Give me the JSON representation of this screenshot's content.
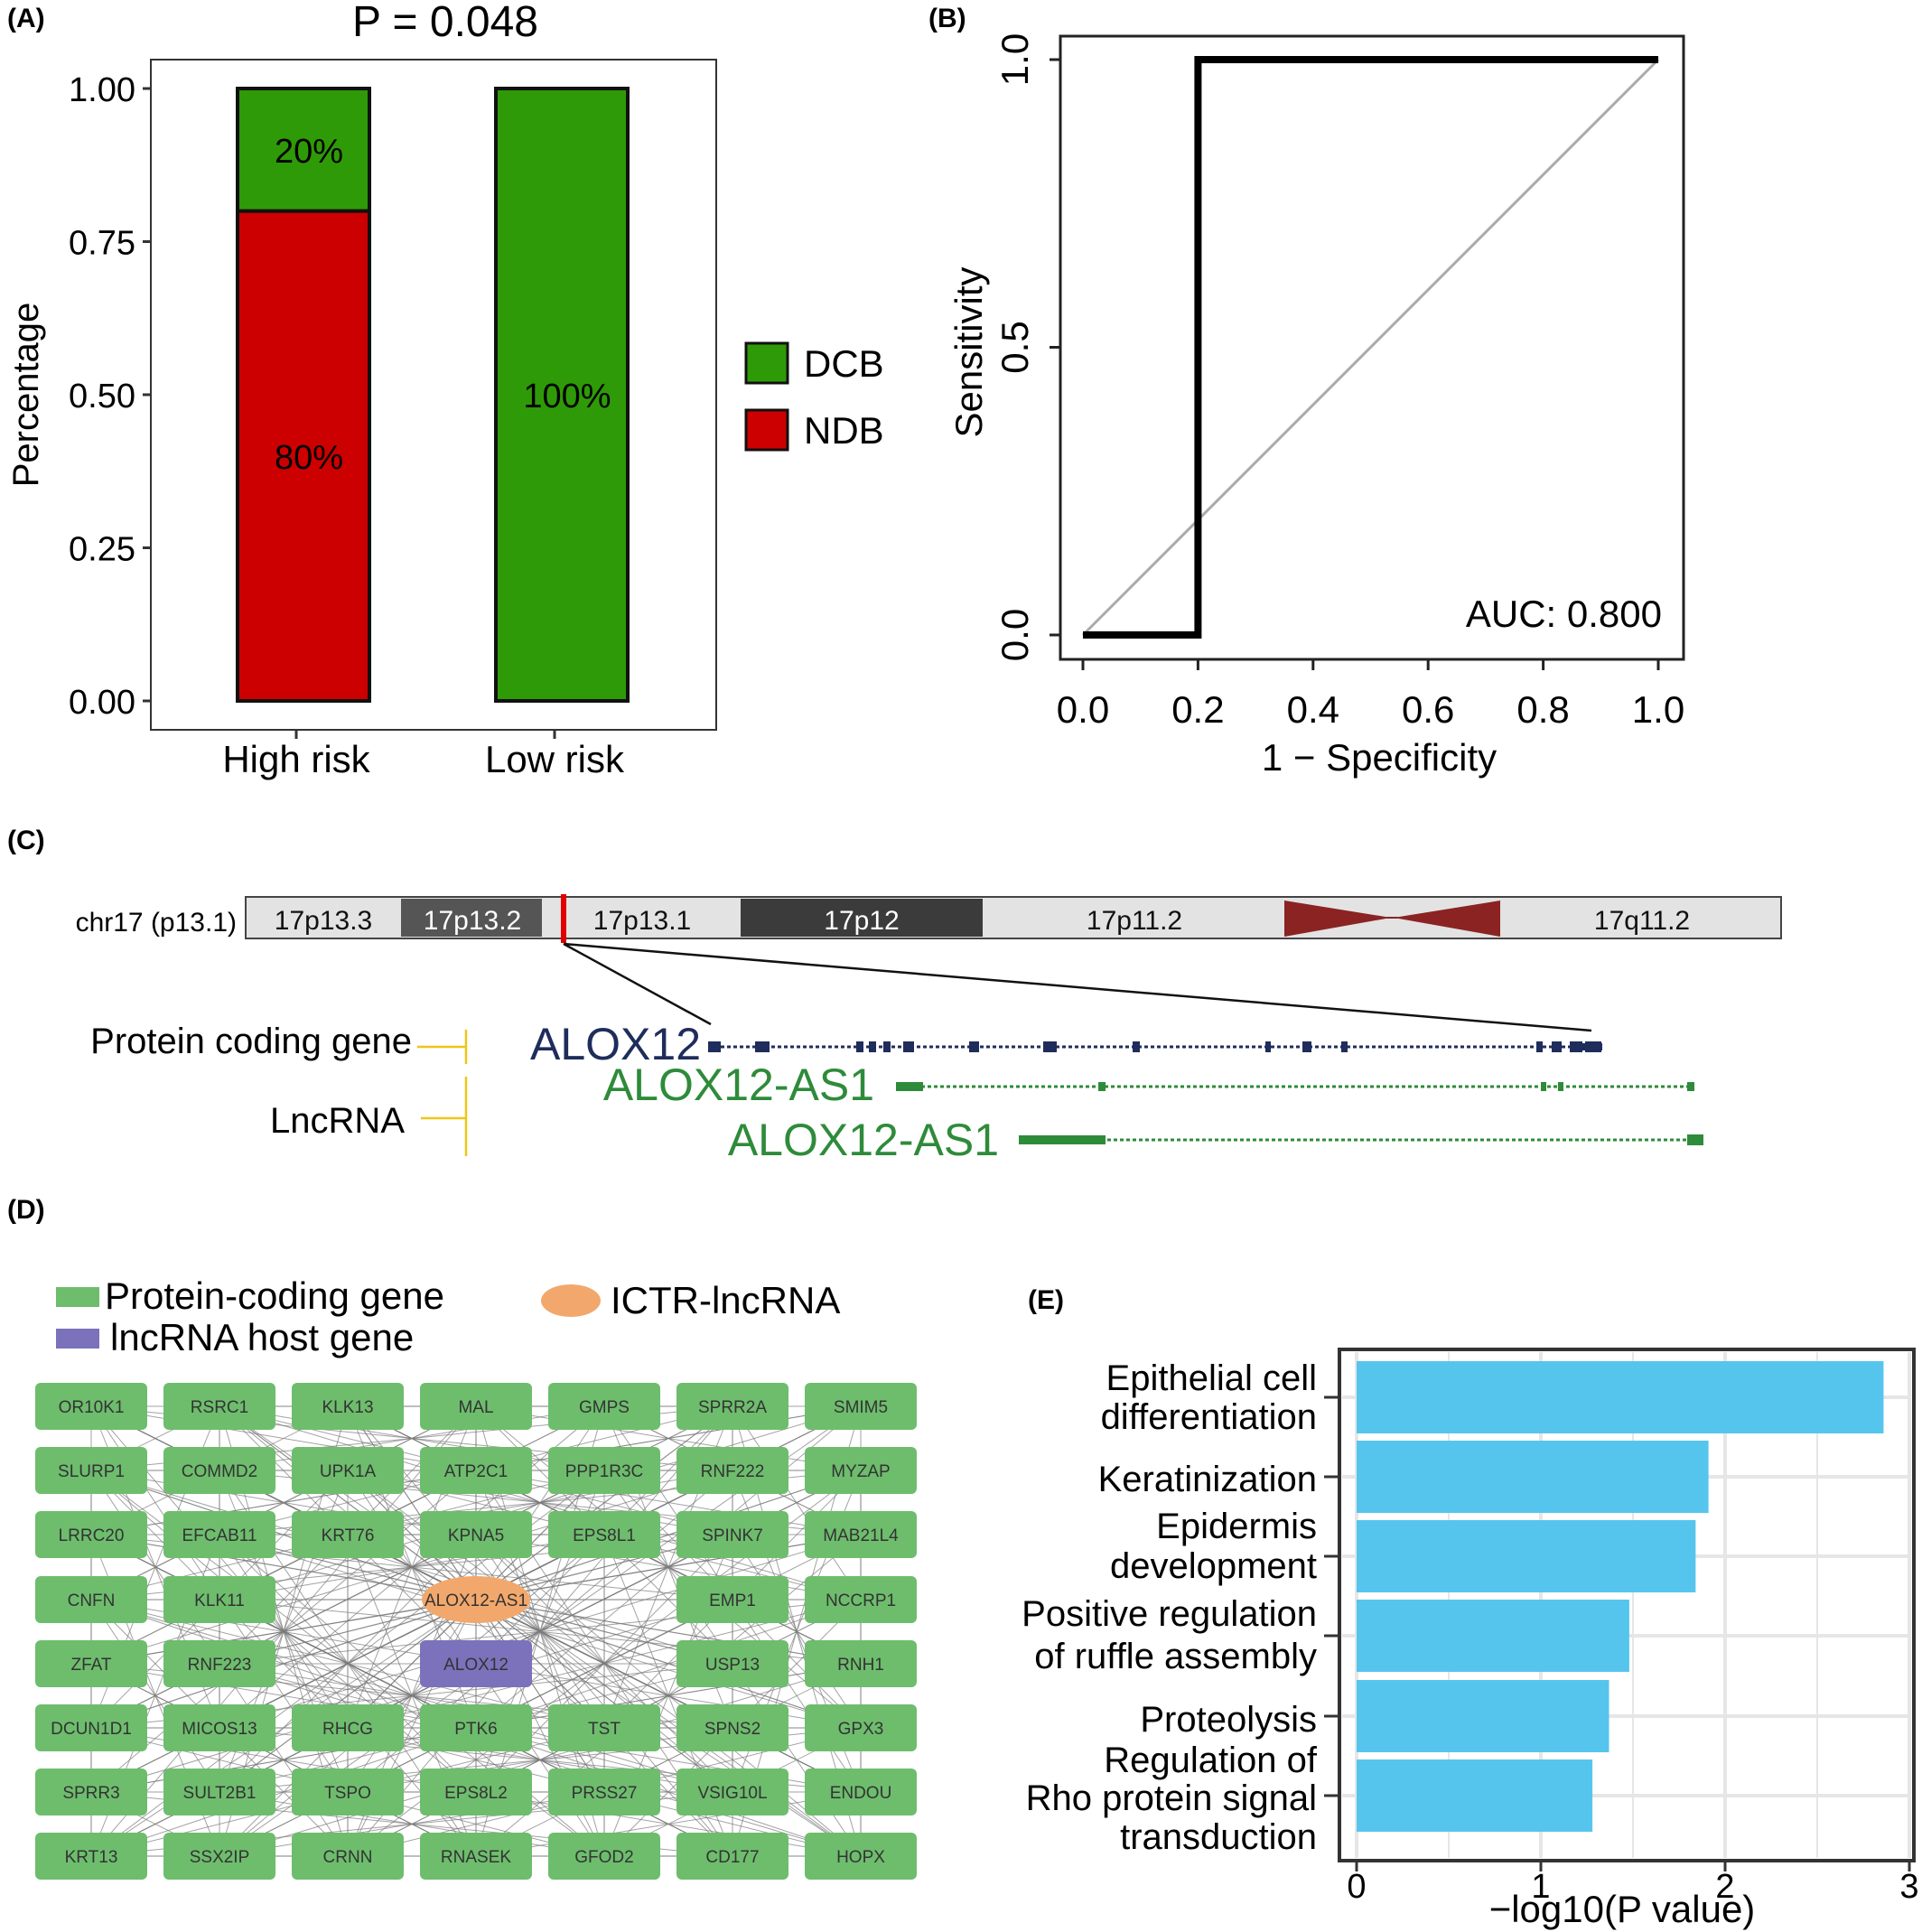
{
  "panels": {
    "A": {
      "label": "(A)",
      "title": "P = 0.048",
      "ylabel": "Percentage",
      "yticks": [
        "0.00",
        "0.25",
        "0.50",
        "0.75",
        "1.00"
      ],
      "categories": [
        "High risk",
        "Low risk"
      ],
      "legend": [
        "DCB",
        "NDB"
      ]
    },
    "B": {
      "label": "(B)",
      "xlabel": "1 − Specificity",
      "ylabel": "Sensitivity",
      "xticks": [
        "0.0",
        "0.2",
        "0.4",
        "0.6",
        "0.8",
        "1.0"
      ],
      "yticks": [
        "0.0",
        "0.5",
        "1.0"
      ],
      "auc": "AUC: 0.800"
    },
    "C": {
      "label": "(C)",
      "chrom_label": "chr17 (p13.1)",
      "bands": [
        "17p13.3",
        "17p13.2",
        "17p13.1",
        "17p12",
        "17p11.2",
        "17q11.2"
      ],
      "track_protein_label": "Protein coding gene",
      "track_lnc_label": "LncRNA",
      "gene": "ALOX12",
      "lnc1": "ALOX12-AS1",
      "lnc2": "ALOX12-AS1"
    },
    "D": {
      "label": "(D)",
      "legend": {
        "protein": "Protein-coding gene",
        "host": "lncRNA host gene",
        "ictr": "ICTR-lncRNA"
      },
      "rows": [
        [
          "OR10K1",
          "RSRC1",
          "KLK13",
          "MAL",
          "GMPS",
          "SPRR2A",
          "SMIM5"
        ],
        [
          "SLURP1",
          "COMMD2",
          "UPK1A",
          "ATP2C1",
          "PPP1R3C",
          "RNF222",
          "MYZAP"
        ],
        [
          "LRRC20",
          "EFCAB11",
          "KRT76",
          "KPNA5",
          "EPS8L1",
          "SPINK7",
          "MAB21L4"
        ],
        [
          "CNFN",
          "KLK11",
          "",
          "ALOX12-AS1",
          "",
          "EMP1",
          "NCCRP1"
        ],
        [
          "ZFAT",
          "RNF223",
          "",
          "ALOX12",
          "",
          "USP13",
          "RNH1"
        ],
        [
          "DCUN1D1",
          "MICOS13",
          "RHCG",
          "PTK6",
          "TST",
          "SPNS2",
          "GPX3"
        ],
        [
          "SPRR3",
          "SULT2B1",
          "TSPO",
          "EPS8L2",
          "PRSS27",
          "VSIG10L",
          "ENDOU"
        ],
        [
          "KRT13",
          "SSX2IP",
          "CRNN",
          "RNASEK",
          "GFOD2",
          "CD177",
          "HOPX"
        ]
      ]
    },
    "E": {
      "label": "(E)",
      "xlabel": "−log10(P value)",
      "xticks": [
        "0",
        "1",
        "2",
        "3"
      ],
      "bar_color": "#56c5ee"
    }
  },
  "colors": {
    "dcb": "#2f9a07",
    "ndb": "#cc0000",
    "protein_node": "#6dbd6d",
    "host_node": "#7b72bb",
    "ictr_node": "#f2a86c",
    "gene_blue": "#1f2d5c",
    "lnc_green": "#2e8b3a",
    "centromere": "#8b2323"
  },
  "chart_data": [
    {
      "type": "bar",
      "stacked": true,
      "title": "P = 0.048",
      "ylabel": "Percentage",
      "ylim": [
        0,
        1
      ],
      "categories": [
        "High risk",
        "Low risk"
      ],
      "series": [
        {
          "name": "NDB",
          "values": [
            0.8,
            0.0
          ],
          "labels": [
            "80%",
            ""
          ]
        },
        {
          "name": "DCB",
          "values": [
            0.2,
            1.0
          ],
          "labels": [
            "20%",
            "100%"
          ]
        }
      ],
      "legend": "right"
    },
    {
      "type": "line",
      "xlabel": "1 − Specificity",
      "ylabel": "Sensitivity",
      "xlim": [
        0,
        1
      ],
      "ylim": [
        0,
        1
      ],
      "series": [
        {
          "x": [
            0.0,
            0.2,
            0.2,
            1.0
          ],
          "y": [
            0.0,
            0.0,
            1.0,
            1.0
          ]
        }
      ],
      "reference_line": {
        "x": [
          0,
          1
        ],
        "y": [
          0,
          1
        ]
      },
      "annotation": "AUC: 0.800"
    },
    {
      "type": "bar",
      "orientation": "horizontal",
      "xlabel": "−log10(P value)",
      "xlim": [
        0,
        3
      ],
      "grid": true,
      "categories": [
        [
          "Epithelial cell",
          "differentiation"
        ],
        [
          "Keratinization"
        ],
        [
          "Epidermis",
          "development"
        ],
        [
          "Positive regulation",
          "of ruffle assembly"
        ],
        [
          "Proteolysis"
        ],
        [
          "Regulation of",
          "Rho protein signal",
          "transduction"
        ]
      ],
      "values": [
        2.86,
        1.91,
        1.84,
        1.48,
        1.37,
        1.28
      ]
    }
  ]
}
